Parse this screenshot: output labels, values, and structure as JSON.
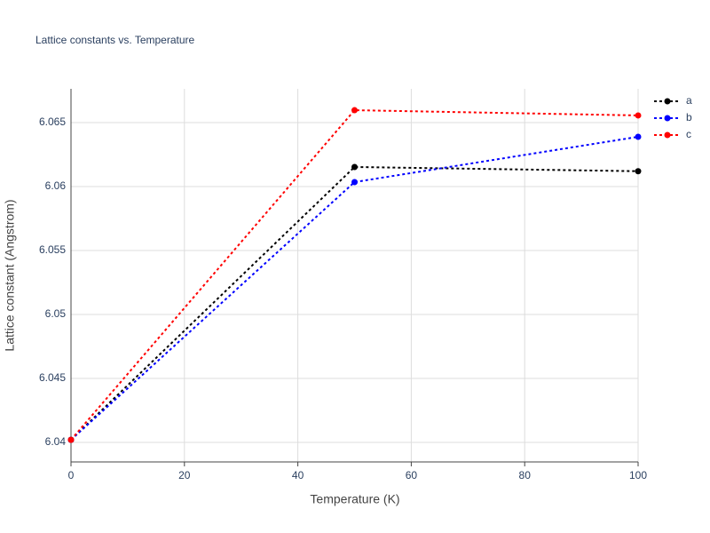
{
  "chart_data": {
    "type": "line",
    "title": "Lattice constants vs. Temperature",
    "x_label": "Temperature (K)",
    "y_label": "Lattice constant (Angstrom)",
    "x": [
      0,
      50,
      100
    ],
    "series": [
      {
        "name": "a",
        "color": "#000000",
        "values": [
          6.0402,
          6.06153,
          6.0612
        ]
      },
      {
        "name": "b",
        "color": "#0000ff",
        "values": [
          6.0402,
          6.06035,
          6.06389
        ]
      },
      {
        "name": "c",
        "color": "#ff0000",
        "values": [
          6.0402,
          6.06597,
          6.06556
        ]
      }
    ],
    "xlim": [
      0,
      100
    ],
    "xticks": [
      0,
      20,
      40,
      60,
      80,
      100
    ],
    "ylim": [
      6.03847,
      6.06764
    ],
    "yticks": [
      6.04,
      6.045,
      6.05,
      6.055,
      6.06,
      6.065
    ],
    "grid": true,
    "legend": "top-right"
  }
}
